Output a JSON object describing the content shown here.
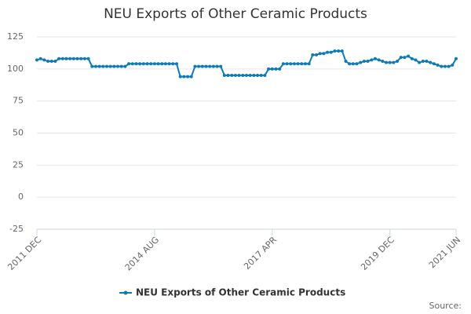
{
  "chart_data": {
    "type": "line",
    "title": "NEU Exports of Other Ceramic Products",
    "source": "Source:",
    "x": [
      "2011-12",
      "2012-01",
      "2012-02",
      "2012-03",
      "2012-04",
      "2012-05",
      "2012-06",
      "2012-07",
      "2012-08",
      "2012-09",
      "2012-10",
      "2012-11",
      "2012-12",
      "2013-01",
      "2013-02",
      "2013-03",
      "2013-04",
      "2013-05",
      "2013-06",
      "2013-07",
      "2013-08",
      "2013-09",
      "2013-10",
      "2013-11",
      "2013-12",
      "2014-01",
      "2014-02",
      "2014-03",
      "2014-04",
      "2014-05",
      "2014-06",
      "2014-07",
      "2014-08",
      "2014-09",
      "2014-10",
      "2014-11",
      "2014-12",
      "2015-01",
      "2015-02",
      "2015-03",
      "2015-04",
      "2015-05",
      "2015-06",
      "2015-07",
      "2015-08",
      "2015-09",
      "2015-10",
      "2015-11",
      "2015-12",
      "2016-01",
      "2016-02",
      "2016-03",
      "2016-04",
      "2016-05",
      "2016-06",
      "2016-07",
      "2016-08",
      "2016-09",
      "2016-10",
      "2016-11",
      "2016-12",
      "2017-01",
      "2017-02",
      "2017-03",
      "2017-04",
      "2017-05",
      "2017-06",
      "2017-07",
      "2017-08",
      "2017-09",
      "2017-10",
      "2017-11",
      "2017-12",
      "2018-01",
      "2018-02",
      "2018-03",
      "2018-04",
      "2018-05",
      "2018-06",
      "2018-07",
      "2018-08",
      "2018-09",
      "2018-10",
      "2018-11",
      "2018-12",
      "2019-01",
      "2019-02",
      "2019-03",
      "2019-04",
      "2019-05",
      "2019-06",
      "2019-07",
      "2019-08",
      "2019-09",
      "2019-10",
      "2019-11",
      "2019-12",
      "2020-01",
      "2020-02",
      "2020-03",
      "2020-04",
      "2020-05",
      "2020-06",
      "2020-07",
      "2020-08",
      "2020-09",
      "2020-10",
      "2020-11",
      "2020-12",
      "2021-01",
      "2021-02",
      "2021-03",
      "2021-04",
      "2021-05",
      "2021-06"
    ],
    "series": [
      {
        "name": "NEU Exports of Other Ceramic Products",
        "color": "#0f7bb5",
        "values": [
          107,
          108,
          107,
          106,
          106,
          106,
          108,
          108,
          108,
          108,
          108,
          108,
          108,
          108,
          108,
          102,
          102,
          102,
          102,
          102,
          102,
          102,
          102,
          102,
          102,
          104,
          104,
          104,
          104,
          104,
          104,
          104,
          104,
          104,
          104,
          104,
          104,
          104,
          104,
          94,
          94,
          94,
          94,
          102,
          102,
          102,
          102,
          102,
          102,
          102,
          102,
          95,
          95,
          95,
          95,
          95,
          95,
          95,
          95,
          95,
          95,
          95,
          95,
          100,
          100,
          100,
          100,
          104,
          104,
          104,
          104,
          104,
          104,
          104,
          104,
          111,
          111,
          112,
          112,
          113,
          113,
          114,
          114,
          114,
          106,
          104,
          104,
          104,
          105,
          106,
          106,
          107,
          108,
          107,
          106,
          105,
          105,
          105,
          106,
          109,
          109,
          110,
          108,
          107,
          105,
          106,
          106,
          105,
          104,
          103,
          102,
          102,
          102,
          103,
          108
        ]
      }
    ],
    "xlim": [
      "2011-12",
      "2021-06"
    ],
    "xticks": [
      {
        "value": "2011-12",
        "label": "2011 DEC"
      },
      {
        "value": "2014-08",
        "label": "2014 AUG"
      },
      {
        "value": "2017-04",
        "label": "2017 APR"
      },
      {
        "value": "2019-12",
        "label": "2019 DEC"
      },
      {
        "value": "2021-06",
        "label": "2021 JUN"
      }
    ],
    "ylim": [
      -25,
      125
    ],
    "yticks": [
      -25,
      0,
      25,
      50,
      75,
      100,
      125
    ],
    "grid": true,
    "legend": "bottom"
  }
}
